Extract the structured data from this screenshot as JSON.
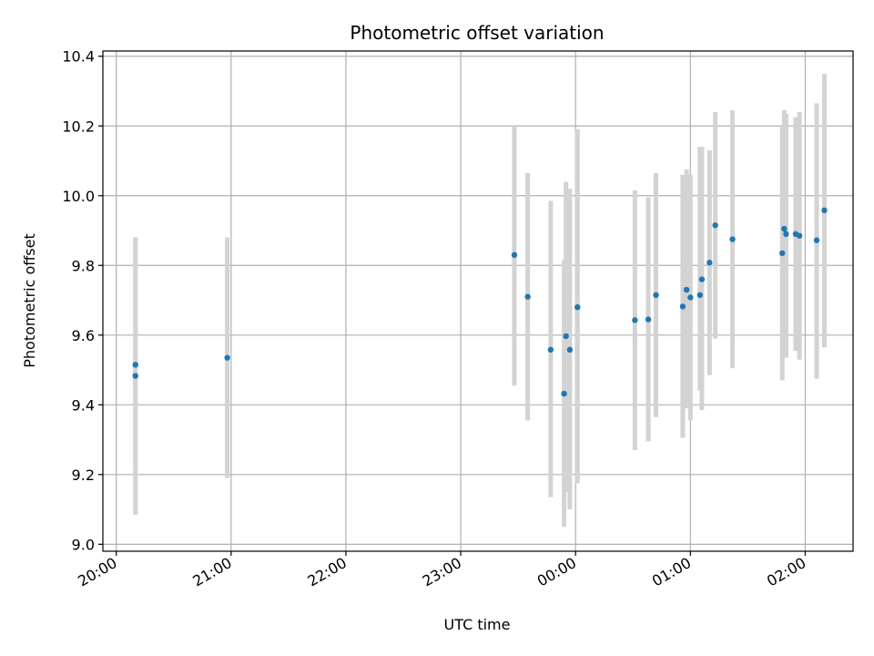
{
  "chart_data": {
    "type": "scatter",
    "title": "Photometric offset variation",
    "xlabel": "UTC time",
    "ylabel": "Photometric offset",
    "x_unit": "UTC time (HH:MM)",
    "x_ticks": [
      "20:00",
      "21:00",
      "22:00",
      "23:00",
      "00:00",
      "01:00",
      "02:00"
    ],
    "y_ticks": [
      "9.0",
      "9.2",
      "9.4",
      "9.6",
      "9.8",
      "10.0",
      "10.2",
      "10.4"
    ],
    "xlim": [
      "19:53",
      "02:25"
    ],
    "ylim": [
      8.98,
      10.415
    ],
    "grid": true,
    "marker_color": "#1f77b4",
    "errorbar_color": "#d3d3d3",
    "points": [
      {
        "t": "20:10",
        "y": 9.483,
        "lo": 9.085,
        "hi": 9.88
      },
      {
        "t": "20:10",
        "y": 9.515,
        "lo": 9.23,
        "hi": 9.88
      },
      {
        "t": "20:58",
        "y": 9.535,
        "lo": 9.19,
        "hi": 9.88
      },
      {
        "t": "23:28",
        "y": 9.83,
        "lo": 9.455,
        "hi": 10.2
      },
      {
        "t": "23:35",
        "y": 9.71,
        "lo": 9.355,
        "hi": 10.065
      },
      {
        "t": "23:47",
        "y": 9.558,
        "lo": 9.135,
        "hi": 9.985
      },
      {
        "t": "23:54",
        "y": 9.432,
        "lo": 9.05,
        "hi": 9.815
      },
      {
        "t": "23:55",
        "y": 9.597,
        "lo": 9.15,
        "hi": 10.04
      },
      {
        "t": "23:57",
        "y": 9.558,
        "lo": 9.1,
        "hi": 10.02
      },
      {
        "t": "00:01",
        "y": 9.68,
        "lo": 9.175,
        "hi": 10.19
      },
      {
        "t": "00:31",
        "y": 9.643,
        "lo": 9.27,
        "hi": 10.015
      },
      {
        "t": "00:38",
        "y": 9.645,
        "lo": 9.295,
        "hi": 9.995
      },
      {
        "t": "00:42",
        "y": 9.715,
        "lo": 9.365,
        "hi": 10.065
      },
      {
        "t": "00:56",
        "y": 9.682,
        "lo": 9.305,
        "hi": 10.06
      },
      {
        "t": "00:58",
        "y": 9.73,
        "lo": 9.39,
        "hi": 10.075
      },
      {
        "t": "01:00",
        "y": 9.708,
        "lo": 9.355,
        "hi": 10.06
      },
      {
        "t": "01:05",
        "y": 9.715,
        "lo": 9.44,
        "hi": 10.14
      },
      {
        "t": "01:06",
        "y": 9.76,
        "lo": 9.385,
        "hi": 10.14
      },
      {
        "t": "01:10",
        "y": 9.808,
        "lo": 9.485,
        "hi": 10.13
      },
      {
        "t": "01:13",
        "y": 9.915,
        "lo": 9.59,
        "hi": 10.24
      },
      {
        "t": "01:22",
        "y": 9.875,
        "lo": 9.505,
        "hi": 10.245
      },
      {
        "t": "01:48",
        "y": 9.835,
        "lo": 9.47,
        "hi": 10.2
      },
      {
        "t": "01:49",
        "y": 9.905,
        "lo": 9.54,
        "hi": 10.245
      },
      {
        "t": "01:50",
        "y": 9.89,
        "lo": 9.535,
        "hi": 10.235
      },
      {
        "t": "01:55",
        "y": 9.89,
        "lo": 9.555,
        "hi": 10.225
      },
      {
        "t": "01:57",
        "y": 9.885,
        "lo": 9.53,
        "hi": 10.24
      },
      {
        "t": "02:06",
        "y": 9.872,
        "lo": 9.475,
        "hi": 10.265
      },
      {
        "t": "02:10",
        "y": 9.958,
        "lo": 9.565,
        "hi": 10.35
      }
    ]
  }
}
